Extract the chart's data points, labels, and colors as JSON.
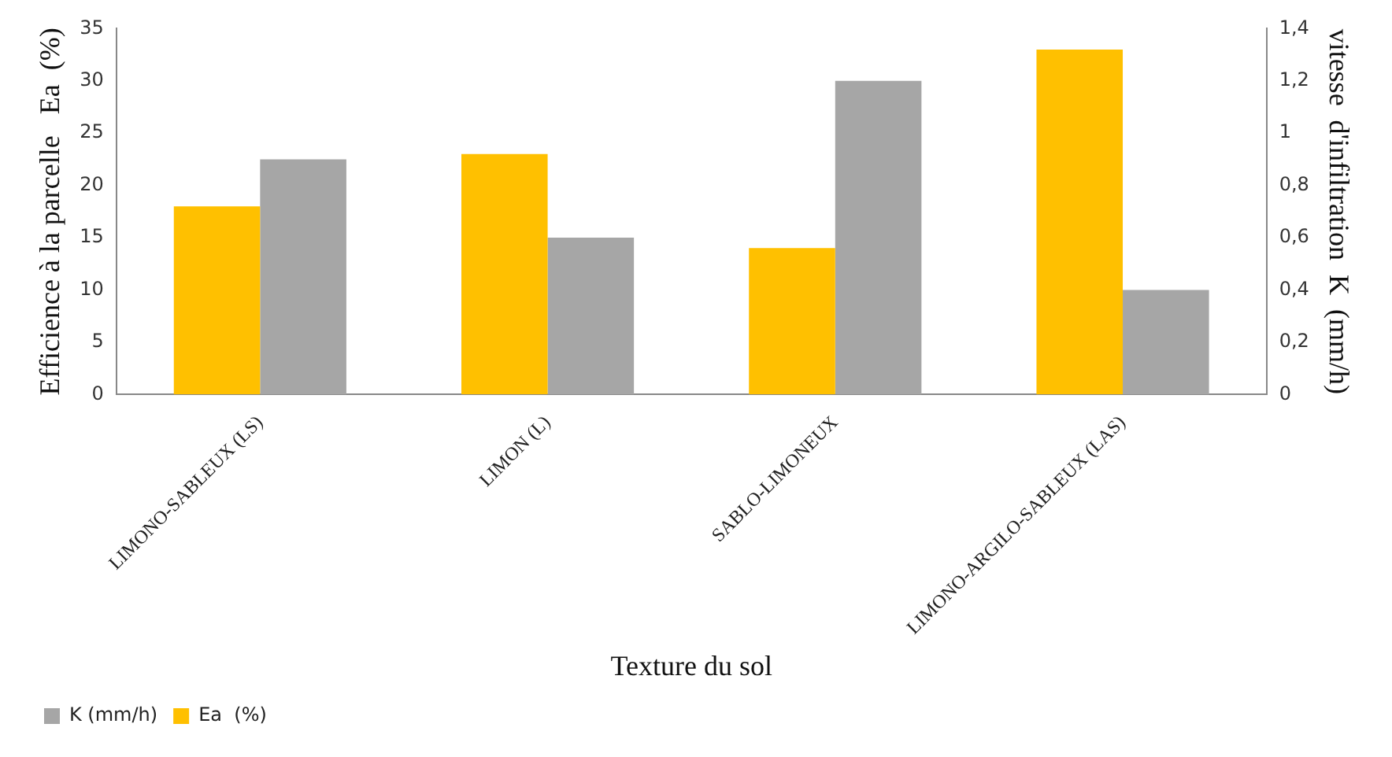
{
  "chart_data": {
    "type": "bar",
    "xlabel": "Texture du sol",
    "ylabel": "Efficience à la parcelle   Ea  (%)",
    "y2label": "vitesse  d'infiltration  K  (mm/h)",
    "categories": [
      "LIMONO-SABLEUX (LS)",
      "LIMON (L)",
      "SABLO-LIMONEUX",
      "LIMONO-ARGILO-SABLEUX (LAS)"
    ],
    "series": [
      {
        "name": "Ea  (%)",
        "color": "#ffc000",
        "values": [
          18,
          23,
          14,
          33
        ]
      },
      {
        "name": "K (mm/h)",
        "color": "#a6a6a6",
        "values": [
          0.9,
          0.6,
          1.2,
          0.4
        ],
        "axis": "y2"
      }
    ],
    "ylim": [
      0,
      35
    ],
    "yticks": [
      0,
      5,
      10,
      15,
      20,
      25,
      30,
      35
    ],
    "y2lim": [
      0,
      1.4
    ],
    "y2ticks": [
      0,
      {
        "value": 0.2,
        "label": "0,2"
      },
      {
        "value": 0.4,
        "label": "0,4"
      },
      {
        "value": 0.6,
        "label": "0,6"
      },
      {
        "value": 0.8,
        "label": "0,8"
      },
      1,
      {
        "value": 1.2,
        "label": "1,2"
      },
      {
        "value": 1.4,
        "label": "1,4"
      }
    ],
    "grid": false,
    "legend": "bottom left"
  }
}
